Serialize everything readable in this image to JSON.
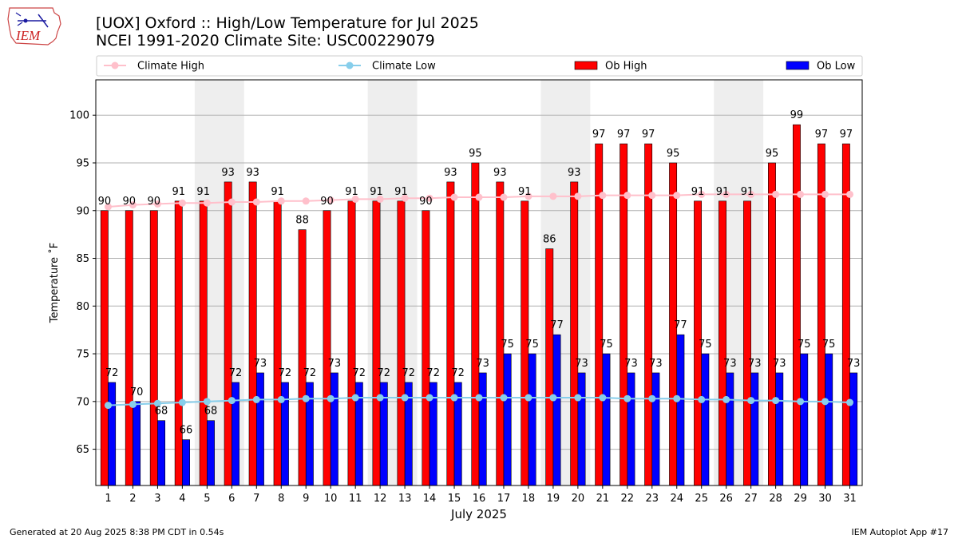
{
  "logo": {
    "text": "IEM"
  },
  "header": {
    "title": "[UOX] Oxford :: High/Low Temperature for Jul 2025",
    "subtitle": "NCEI 1991-2020 Climate Site: USC00229079"
  },
  "footer": {
    "left": "Generated at 20 Aug 2025 8:38 PM CDT in 0.54s",
    "right": "IEM Autoplot App #17"
  },
  "colors": {
    "ob_high": "#ff0000",
    "ob_low": "#0000ff",
    "climate_high": "#ffc0cb",
    "climate_low": "#87ceeb",
    "weekend_shade": "#eeeeee",
    "grid": "#b0b0b0"
  },
  "chart_data": {
    "type": "bar",
    "xlabel": "July 2025",
    "ylabel": "Temperature ˚F",
    "ylim": [
      61.2,
      103.7
    ],
    "yticks": [
      65,
      70,
      75,
      80,
      85,
      90,
      95,
      100
    ],
    "grid": "horizontal",
    "legend_position": "top",
    "categories": [
      "1",
      "2",
      "3",
      "4",
      "5",
      "6",
      "7",
      "8",
      "9",
      "10",
      "11",
      "12",
      "13",
      "14",
      "15",
      "16",
      "17",
      "18",
      "19",
      "20",
      "21",
      "22",
      "23",
      "24",
      "25",
      "26",
      "27",
      "28",
      "29",
      "30",
      "31"
    ],
    "shaded_weekends": [
      [
        5,
        6
      ],
      [
        12,
        13
      ],
      [
        19,
        20
      ],
      [
        26,
        27
      ]
    ],
    "series": [
      {
        "name": "Ob High",
        "kind": "bar",
        "values": [
          90,
          90,
          90,
          91,
          91,
          93,
          93,
          91,
          88,
          90,
          91,
          91,
          91,
          90,
          93,
          95,
          93,
          91,
          86,
          93,
          97,
          97,
          97,
          95,
          91,
          91,
          91,
          95,
          99,
          97,
          97
        ]
      },
      {
        "name": "Ob Low",
        "kind": "bar",
        "values": [
          72,
          70,
          68,
          66,
          68,
          72,
          73,
          72,
          72,
          73,
          72,
          72,
          72,
          72,
          72,
          73,
          75,
          75,
          77,
          73,
          75,
          73,
          73,
          77,
          75,
          73,
          73,
          73,
          75,
          75,
          73
        ]
      },
      {
        "name": "Climate High",
        "kind": "line",
        "values": [
          90.4,
          90.6,
          90.7,
          90.8,
          90.8,
          90.9,
          90.9,
          91.0,
          91.0,
          91.1,
          91.2,
          91.2,
          91.3,
          91.3,
          91.4,
          91.4,
          91.4,
          91.5,
          91.5,
          91.5,
          91.6,
          91.6,
          91.6,
          91.6,
          91.7,
          91.7,
          91.7,
          91.7,
          91.7,
          91.7,
          91.7
        ]
      },
      {
        "name": "Climate Low",
        "kind": "line",
        "values": [
          69.6,
          69.7,
          69.8,
          69.9,
          70.0,
          70.1,
          70.2,
          70.2,
          70.3,
          70.3,
          70.4,
          70.4,
          70.4,
          70.4,
          70.4,
          70.4,
          70.4,
          70.4,
          70.4,
          70.4,
          70.4,
          70.3,
          70.3,
          70.3,
          70.2,
          70.2,
          70.1,
          70.1,
          70.0,
          70.0,
          69.9
        ]
      }
    ]
  }
}
